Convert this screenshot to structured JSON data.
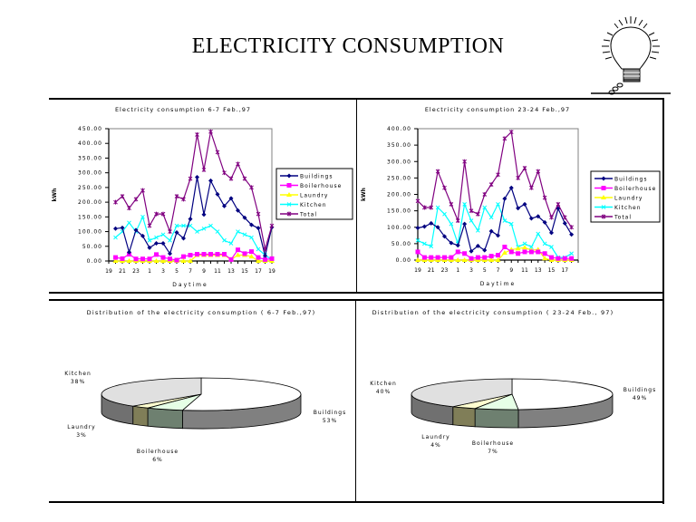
{
  "page": {
    "title": "ELECTRICITY  CONSUMPTION",
    "icon": "lightbulb-icon"
  },
  "chart_data": [
    {
      "type": "line",
      "id": "line-6-7",
      "title": "Electricity consumption 6-7 Feb.,97",
      "xlabel": "Daytime",
      "ylabel": "kWh",
      "ylim": [
        0,
        450
      ],
      "yticks": [
        0,
        50,
        100,
        150,
        200,
        250,
        300,
        350,
        400,
        450
      ],
      "ytick_labels": [
        "0.00",
        "50.00",
        "100.00",
        "150.00",
        "200.00",
        "250.00",
        "300.00",
        "350.00",
        "400.00",
        "450.00"
      ],
      "xtick_labels": [
        "19",
        "21",
        "23",
        "1",
        "3",
        "5",
        "7",
        "9",
        "11",
        "13",
        "15",
        "17",
        "19"
      ],
      "x": [
        "20",
        "21",
        "22",
        "23",
        "24",
        "1",
        "2",
        "3",
        "4",
        "5",
        "6",
        "7",
        "8",
        "9",
        "10",
        "11",
        "12",
        "13",
        "14",
        "15",
        "16",
        "17",
        "18",
        "19"
      ],
      "legend_position": "right",
      "grid": false,
      "series": [
        {
          "name": "Buildings",
          "color": "#000080",
          "marker": "diamond",
          "values": [
            110,
            113,
            30,
            105,
            85,
            45,
            60,
            60,
            25,
            97,
            77,
            143,
            285,
            158,
            273,
            227,
            187,
            213,
            172,
            147,
            123,
            112,
            18,
            115
          ]
        },
        {
          "name": "Boilerhouse",
          "color": "#ff00ff",
          "marker": "square",
          "values": [
            12,
            8,
            23,
            7,
            7,
            7,
            22,
            12,
            7,
            3,
            15,
            20,
            23,
            23,
            23,
            23,
            23,
            5,
            38,
            25,
            32,
            12,
            5,
            8
          ]
        },
        {
          "name": "Laundry",
          "color": "#ffff00",
          "marker": "triangle",
          "values": [
            0,
            0,
            0,
            0,
            0,
            0,
            0,
            0,
            0,
            0,
            0,
            0,
            20,
            20,
            20,
            20,
            20,
            5,
            20,
            20,
            15,
            0,
            0,
            0
          ]
        },
        {
          "name": "Kitchen",
          "color": "#00ffff",
          "marker": "x",
          "values": [
            80,
            100,
            130,
            100,
            150,
            70,
            80,
            90,
            70,
            120,
            120,
            120,
            100,
            110,
            120,
            100,
            70,
            60,
            100,
            90,
            80,
            40,
            20,
            5
          ]
        },
        {
          "name": "Total",
          "color": "#800080",
          "marker": "star",
          "values": [
            200,
            220,
            180,
            210,
            240,
            120,
            160,
            160,
            100,
            220,
            210,
            280,
            430,
            310,
            440,
            370,
            300,
            280,
            330,
            280,
            250,
            160,
            40,
            120
          ]
        }
      ]
    },
    {
      "type": "line",
      "id": "line-23-24",
      "title": "Electricity consumption 23-24 Feb.,97",
      "xlabel": "Daytime",
      "ylabel": "kWh",
      "ylim": [
        0,
        400
      ],
      "yticks": [
        0,
        50,
        100,
        150,
        200,
        250,
        300,
        350,
        400
      ],
      "ytick_labels": [
        "0.00",
        "50.00",
        "100.00",
        "150.00",
        "200.00",
        "250.00",
        "300.00",
        "350.00",
        "400.00"
      ],
      "xtick_labels": [
        "19",
        "21",
        "23",
        "1",
        "3",
        "5",
        "7",
        "9",
        "11",
        "13",
        "15",
        "17"
      ],
      "x": [
        "19",
        "20",
        "21",
        "22",
        "23",
        "24",
        "1",
        "2",
        "3",
        "4",
        "5",
        "6",
        "7",
        "8",
        "9",
        "10",
        "11",
        "12",
        "13",
        "14",
        "15",
        "16",
        "17",
        "18"
      ],
      "legend_position": "right",
      "grid": false,
      "series": [
        {
          "name": "Buildings",
          "color": "#000080",
          "marker": "diamond",
          "values": [
            98,
            102,
            112,
            100,
            72,
            52,
            45,
            110,
            27,
            43,
            30,
            88,
            75,
            187,
            220,
            158,
            170,
            127,
            133,
            115,
            83,
            157,
            112,
            78
          ]
        },
        {
          "name": "Boilerhouse",
          "color": "#ff00ff",
          "marker": "square",
          "values": [
            25,
            8,
            8,
            8,
            8,
            8,
            25,
            20,
            5,
            8,
            8,
            12,
            15,
            40,
            25,
            20,
            25,
            25,
            25,
            20,
            8,
            5,
            5,
            5
          ]
        },
        {
          "name": "Laundry",
          "color": "#ffff00",
          "marker": "triangle",
          "values": [
            0,
            0,
            0,
            0,
            0,
            0,
            0,
            0,
            0,
            0,
            0,
            0,
            0,
            22,
            32,
            35,
            38,
            30,
            32,
            5,
            0,
            0,
            0,
            0
          ]
        },
        {
          "name": "Kitchen",
          "color": "#00ffff",
          "marker": "x",
          "values": [
            60,
            50,
            42,
            160,
            140,
            110,
            50,
            170,
            120,
            90,
            160,
            130,
            170,
            120,
            110,
            40,
            50,
            40,
            80,
            50,
            40,
            8,
            8,
            20
          ]
        },
        {
          "name": "Total",
          "color": "#800080",
          "marker": "star",
          "values": [
            180,
            160,
            160,
            270,
            220,
            170,
            120,
            300,
            150,
            140,
            200,
            230,
            260,
            370,
            390,
            250,
            280,
            220,
            270,
            190,
            130,
            170,
            130,
            100
          ]
        }
      ]
    },
    {
      "type": "pie",
      "id": "pie-6-7",
      "title": "Distribution of the electricity consumption ( 6-7 Feb.,97)",
      "slices": [
        {
          "name": "Buildings",
          "value": 53,
          "label": "Buildings",
          "pct_label": "53%",
          "top_color": "#ffffff",
          "side_color": "#808080"
        },
        {
          "name": "Boilerhouse",
          "value": 6,
          "label": "Boilerhouse",
          "pct_label": "6%",
          "top_color": "#e6ffe6",
          "side_color": "#6e8070"
        },
        {
          "name": "Laundry",
          "value": 3,
          "label": "Laundry",
          "pct_label": "3%",
          "top_color": "#ffffd0",
          "side_color": "#807e58"
        },
        {
          "name": "Kitchen",
          "value": 38,
          "label": "Kitchen",
          "pct_label": "38%",
          "top_color": "#e0e0e0",
          "side_color": "#707070"
        }
      ]
    },
    {
      "type": "pie",
      "id": "pie-23-24",
      "title": "Distribution of the electricity consumption ( 23-24 Feb., 97)",
      "slices": [
        {
          "name": "Buildings",
          "value": 49,
          "label": "Buildings",
          "pct_label": "49%",
          "top_color": "#ffffff",
          "side_color": "#808080"
        },
        {
          "name": "Boilerhouse",
          "value": 7,
          "label": "Boilerhouse",
          "pct_label": "7%",
          "top_color": "#e6ffe6",
          "side_color": "#6e8070"
        },
        {
          "name": "Laundry",
          "value": 4,
          "label": "Laundry",
          "pct_label": "4%",
          "top_color": "#ffffd0",
          "side_color": "#807e58"
        },
        {
          "name": "Kitchen",
          "value": 40,
          "label": "Kitchen",
          "pct_label": "40%",
          "top_color": "#e0e0e0",
          "side_color": "#707070"
        }
      ]
    }
  ]
}
